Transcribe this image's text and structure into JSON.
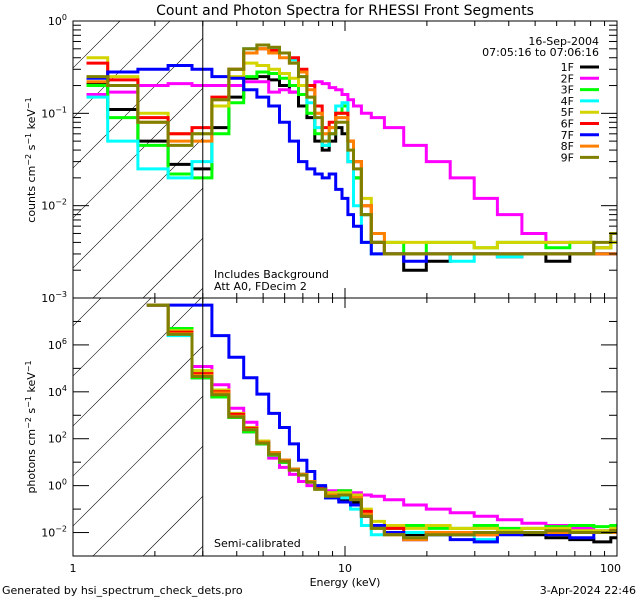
{
  "chart_data": [
    {
      "type": "line",
      "panel": "top",
      "title": "Count and Photon Spectra for RHESSI Front Segments",
      "xlabel": "",
      "ylabel": "counts cm^-2 s^-1 keV^-1",
      "ylabel_parts": {
        "base": "counts cm",
        "e1": "−2",
        "mid": " s",
        "e2": "−1",
        "mid2": " keV",
        "e3": "−1"
      },
      "xscale": "log",
      "yscale": "log",
      "xlim": [
        1,
        100
      ],
      "ylim": [
        0.001,
        1
      ],
      "y_ticks": [
        {
          "value": 1,
          "label_base": "10",
          "label_exp": "0"
        },
        {
          "value": 0.1,
          "label_base": "10",
          "label_exp": "−1"
        },
        {
          "value": 0.01,
          "label_base": "10",
          "label_exp": "−2"
        },
        {
          "value": 0.001,
          "label_base": "10",
          "label_exp": "−3"
        }
      ],
      "annotations": [
        "Includes Background",
        "Att A0, FDecim 2"
      ],
      "threshold_energy_keV": 3,
      "hatched_region_keV": [
        1,
        3
      ],
      "legend": {
        "placement": "top-right",
        "date": "16-Sep-2004",
        "time_range": "07:05:16 to 07:06:16",
        "entries": [
          {
            "label": "1F",
            "color": "#000000"
          },
          {
            "label": "2F",
            "color": "#ff00ff"
          },
          {
            "label": "3F",
            "color": "#00ff00"
          },
          {
            "label": "4F",
            "color": "#00ffff"
          },
          {
            "label": "5F",
            "color": "#d4d400"
          },
          {
            "label": "6F",
            "color": "#ff0000"
          },
          {
            "label": "7F",
            "color": "#0000ff"
          },
          {
            "label": "8F",
            "color": "#ff8000"
          },
          {
            "label": "9F",
            "color": "#808000"
          }
        ]
      },
      "x": [
        1.2,
        1.5,
        2.0,
        2.5,
        3.0,
        3.5,
        4.0,
        4.5,
        5.0,
        5.5,
        6.0,
        6.5,
        7.0,
        7.5,
        8.0,
        8.5,
        9.0,
        9.5,
        10.0,
        10.5,
        11.0,
        12.0,
        13.0,
        15.0,
        18.0,
        22.0,
        27.0,
        33.0,
        40.0,
        50.0,
        60.0,
        75.0,
        90.0,
        100.0
      ],
      "series": [
        {
          "name": "1F",
          "values": [
            0.21,
            0.11,
            0.05,
            0.028,
            0.025,
            0.07,
            0.15,
            0.24,
            0.25,
            0.23,
            0.2,
            0.17,
            0.12,
            0.09,
            0.05,
            0.04,
            0.05,
            0.07,
            0.06,
            0.03,
            0.02,
            0.008,
            0.004,
            0.003,
            0.002,
            0.0025,
            0.003,
            0.003,
            0.0028,
            0.003,
            0.0025,
            0.003,
            0.003,
            0.003
          ]
        },
        {
          "name": "2F",
          "values": [
            0.16,
            0.17,
            0.2,
            0.21,
            0.2,
            0.2,
            0.2,
            0.22,
            0.22,
            0.17,
            0.18,
            0.17,
            0.2,
            0.2,
            0.22,
            0.21,
            0.19,
            0.18,
            0.16,
            0.14,
            0.12,
            0.1,
            0.09,
            0.07,
            0.045,
            0.03,
            0.02,
            0.012,
            0.008,
            0.005,
            0.004,
            0.004,
            0.0035,
            0.004
          ]
        },
        {
          "name": "3F",
          "values": [
            0.2,
            0.09,
            0.045,
            0.022,
            0.02,
            0.06,
            0.13,
            0.25,
            0.28,
            0.27,
            0.24,
            0.2,
            0.16,
            0.1,
            0.06,
            0.045,
            0.06,
            0.1,
            0.12,
            0.05,
            0.02,
            0.008,
            0.004,
            0.004,
            0.003,
            0.004,
            0.004,
            0.0035,
            0.004,
            0.004,
            0.0035,
            0.004,
            0.0035,
            0.004
          ]
        },
        {
          "name": "4F",
          "values": [
            0.15,
            0.05,
            0.025,
            0.02,
            0.03,
            0.12,
            0.3,
            0.5,
            0.55,
            0.5,
            0.45,
            0.38,
            0.25,
            0.13,
            0.07,
            0.045,
            0.06,
            0.12,
            0.13,
            0.03,
            0.01,
            0.004,
            0.003,
            0.003,
            0.003,
            0.003,
            0.0025,
            0.003,
            0.0028,
            0.003,
            0.003,
            0.003,
            0.003,
            0.003
          ]
        },
        {
          "name": "5F",
          "values": [
            0.4,
            0.25,
            0.1,
            0.06,
            0.06,
            0.12,
            0.25,
            0.35,
            0.33,
            0.3,
            0.27,
            0.24,
            0.2,
            0.15,
            0.1,
            0.06,
            0.07,
            0.1,
            0.1,
            0.05,
            0.03,
            0.012,
            0.005,
            0.004,
            0.004,
            0.004,
            0.004,
            0.0035,
            0.004,
            0.004,
            0.004,
            0.004,
            0.0035,
            0.004
          ]
        },
        {
          "name": "6F",
          "values": [
            0.35,
            0.23,
            0.09,
            0.06,
            0.07,
            0.15,
            0.3,
            0.45,
            0.5,
            0.48,
            0.45,
            0.4,
            0.3,
            0.2,
            0.12,
            0.07,
            0.08,
            0.1,
            0.1,
            0.05,
            0.03,
            0.01,
            0.004,
            0.003,
            0.003,
            0.003,
            0.003,
            0.003,
            0.003,
            0.003,
            0.003,
            0.003,
            0.003,
            0.003
          ]
        },
        {
          "name": "7F",
          "values": [
            0.24,
            0.28,
            0.3,
            0.33,
            0.3,
            0.25,
            0.24,
            0.18,
            0.15,
            0.12,
            0.08,
            0.05,
            0.03,
            0.025,
            0.022,
            0.02,
            0.022,
            0.015,
            0.012,
            0.008,
            0.006,
            0.004,
            0.003,
            0.003,
            0.0025,
            0.003,
            0.003,
            0.003,
            0.003,
            0.003,
            0.003,
            0.003,
            0.003,
            0.003
          ]
        },
        {
          "name": "8F",
          "values": [
            0.22,
            0.2,
            0.08,
            0.05,
            0.05,
            0.14,
            0.3,
            0.45,
            0.5,
            0.45,
            0.4,
            0.35,
            0.28,
            0.18,
            0.1,
            0.06,
            0.07,
            0.09,
            0.09,
            0.05,
            0.03,
            0.01,
            0.005,
            0.003,
            0.003,
            0.003,
            0.003,
            0.003,
            0.003,
            0.003,
            0.003,
            0.003,
            0.003,
            0.003
          ]
        },
        {
          "name": "9F",
          "values": [
            0.25,
            0.2,
            0.08,
            0.045,
            0.06,
            0.14,
            0.3,
            0.5,
            0.55,
            0.52,
            0.45,
            0.35,
            0.25,
            0.15,
            0.09,
            0.05,
            0.06,
            0.08,
            0.08,
            0.04,
            0.025,
            0.008,
            0.004,
            0.003,
            0.003,
            0.003,
            0.003,
            0.003,
            0.003,
            0.003,
            0.003,
            0.003,
            0.004,
            0.005
          ]
        }
      ]
    },
    {
      "type": "line",
      "panel": "bottom",
      "title": "",
      "xlabel": "Energy (keV)",
      "ylabel": "photons cm^-2 s^-1 keV^-1",
      "ylabel_parts": {
        "base": "photons cm",
        "e1": "−2",
        "mid": " s",
        "e2": "−1",
        "mid2": " keV",
        "e3": "−1"
      },
      "xscale": "log",
      "yscale": "log",
      "xlim": [
        1,
        100
      ],
      "ylim": [
        0.001,
        100000000
      ],
      "x_ticks": [
        {
          "value": 1,
          "label": "1"
        },
        {
          "value": 10,
          "label": "10"
        },
        {
          "value": 100,
          "label": "100"
        }
      ],
      "y_ticks": [
        {
          "value": 1000000,
          "label_base": "10",
          "label_exp": "6"
        },
        {
          "value": 10000,
          "label_base": "10",
          "label_exp": "4"
        },
        {
          "value": 100,
          "label_base": "10",
          "label_exp": "2"
        },
        {
          "value": 1,
          "label_base": "10",
          "label_exp": "0"
        },
        {
          "value": 0.01,
          "label_base": "10",
          "label_exp": "−2"
        }
      ],
      "annotations": [
        "Semi-calibrated"
      ],
      "threshold_energy_keV": 3,
      "hatched_region_keV": [
        1,
        3
      ],
      "x": [
        2.0,
        2.5,
        3.0,
        3.5,
        4.0,
        4.5,
        5.0,
        5.5,
        6.0,
        6.5,
        7.0,
        7.5,
        8.0,
        9.0,
        10.0,
        11.0,
        12.0,
        13.0,
        15.0,
        18.0,
        22.0,
        27.0,
        33.0,
        40.0,
        50.0,
        60.0,
        75.0,
        90.0,
        100.0
      ],
      "series": [
        {
          "name": "1F",
          "values": [
            50000000,
            5000000,
            40000,
            6000,
            800,
            200,
            60,
            20,
            10,
            5,
            3,
            1.5,
            0.8,
            0.3,
            0.25,
            0.2,
            0.05,
            0.02,
            0.01,
            0.008,
            0.01,
            0.008,
            0.01,
            0.009,
            0.008,
            0.006,
            0.005,
            0.004,
            0.006
          ]
        },
        {
          "name": "2F",
          "values": [
            50000000,
            5000000,
            120000,
            20000,
            2000,
            500,
            80,
            15,
            6,
            3,
            1.5,
            1,
            0.8,
            0.6,
            0.6,
            0.5,
            0.4,
            0.35,
            0.25,
            0.15,
            0.1,
            0.07,
            0.05,
            0.035,
            0.025,
            0.02,
            0.015,
            0.012,
            0.012
          ]
        },
        {
          "name": "3F",
          "values": [
            50000000,
            5000000,
            40000,
            6000,
            800,
            200,
            60,
            20,
            10,
            5,
            3,
            1.5,
            0.8,
            0.5,
            0.6,
            0.3,
            0.06,
            0.02,
            0.015,
            0.02,
            0.015,
            0.015,
            0.02,
            0.015,
            0.015,
            0.018,
            0.02,
            0.018,
            0.02
          ]
        },
        {
          "name": "4F",
          "values": [
            50000000,
            2500000,
            50000,
            8000,
            1000,
            250,
            80,
            25,
            12,
            5,
            3,
            1.5,
            0.7,
            0.3,
            0.3,
            0.1,
            0.02,
            0.008,
            0.01,
            0.01,
            0.008,
            0.01,
            0.005,
            0.012,
            0.01,
            0.01,
            0.01,
            0.01,
            0.01
          ]
        },
        {
          "name": "5F",
          "values": [
            50000000,
            4000000,
            80000,
            12000,
            1200,
            300,
            80,
            25,
            12,
            5,
            3,
            1.5,
            0.8,
            0.5,
            0.5,
            0.4,
            0.1,
            0.03,
            0.02,
            0.015,
            0.02,
            0.015,
            0.015,
            0.012,
            0.015,
            0.015,
            0.012,
            0.012,
            0.015
          ]
        },
        {
          "name": "6F",
          "values": [
            50000000,
            3500000,
            60000,
            10000,
            1100,
            280,
            70,
            25,
            12,
            5,
            3,
            1.5,
            0.8,
            0.4,
            0.4,
            0.3,
            0.08,
            0.02,
            0.015,
            0.005,
            0.01,
            0.01,
            0.008,
            0.01,
            0.01,
            0.01,
            0.01,
            0.01,
            0.012
          ]
        },
        {
          "name": "7F",
          "values": [
            50000000,
            50000000,
            50000000,
            2500000,
            300000,
            40000,
            8000,
            1200,
            300,
            60,
            12,
            4,
            1,
            0.3,
            0.2,
            0.15,
            0.05,
            0.02,
            0.01,
            0.005,
            0.008,
            0.005,
            0.004,
            0.008,
            0.01,
            0.008,
            0.006,
            0.01,
            0.01
          ]
        },
        {
          "name": "8F",
          "values": [
            50000000,
            3000000,
            50000,
            9000,
            900,
            250,
            70,
            25,
            12,
            5,
            3,
            1.5,
            0.7,
            0.4,
            0.4,
            0.3,
            0.06,
            0.015,
            0.008,
            0.005,
            0.01,
            0.01,
            0.008,
            0.01,
            0.01,
            0.01,
            0.01,
            0.01,
            0.01
          ]
        },
        {
          "name": "9F",
          "values": [
            50000000,
            2800000,
            45000,
            7500,
            850,
            240,
            65,
            22,
            11,
            4.5,
            2.8,
            1.4,
            0.7,
            0.35,
            0.4,
            0.25,
            0.05,
            0.015,
            0.008,
            0.006,
            0.008,
            0.008,
            0.01,
            0.01,
            0.01,
            0.012,
            0.01,
            0.01,
            0.012
          ]
        }
      ]
    }
  ],
  "footer": {
    "generated_by": "Generated by hsi_spectrum_check_dets.pro",
    "timestamp": "3-Apr-2024 22:46"
  }
}
